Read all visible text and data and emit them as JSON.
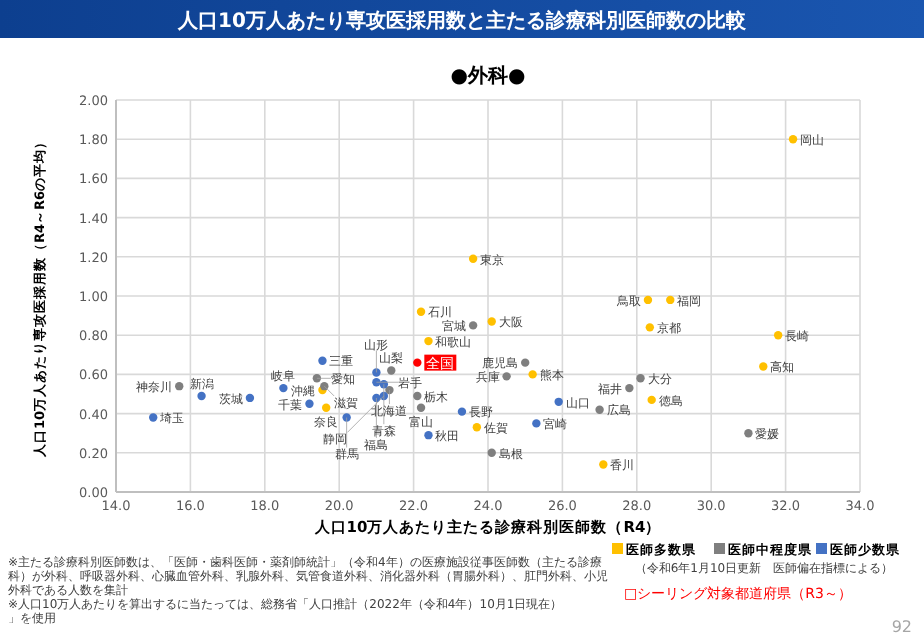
{
  "chart_data": {
    "type": "scatter",
    "title": "人口10万人あたり専攻医採用数と主たる診療科別医師数の比較",
    "subtitle": "●外科●",
    "xlabel": "人口10万人あたり主たる診療科別医師数（R4）",
    "ylabel": "人口10万人あたり専攻医採用数（R4～R6の平均）",
    "xlim": [
      14,
      34
    ],
    "xticks": [
      {
        "value": 14,
        "label": "14.0"
      },
      {
        "value": 16,
        "label": "16.0"
      },
      {
        "value": 18,
        "label": "18.0"
      },
      {
        "value": 20,
        "label": "20.0"
      },
      {
        "value": 22,
        "label": "22.0"
      },
      {
        "value": 24,
        "label": "24.0"
      },
      {
        "value": 26,
        "label": "26.0"
      },
      {
        "value": 28,
        "label": "28.0"
      },
      {
        "value": 30,
        "label": "30.0"
      },
      {
        "value": 32,
        "label": "32.0"
      },
      {
        "value": 34,
        "label": "34.0"
      }
    ],
    "ylim": [
      0,
      2
    ],
    "yticks": [
      {
        "value": 0,
        "label": "0.00"
      },
      {
        "value": 0.2,
        "label": "0.20"
      },
      {
        "value": 0.4,
        "label": "0.40"
      },
      {
        "value": 0.6,
        "label": "0.60"
      },
      {
        "value": 0.8,
        "label": "0.80"
      },
      {
        "value": 1,
        "label": "1.00"
      },
      {
        "value": 1.2,
        "label": "1.20"
      },
      {
        "value": 1.4,
        "label": "1.40"
      },
      {
        "value": 1.6,
        "label": "1.60"
      },
      {
        "value": 1.8,
        "label": "1.80"
      },
      {
        "value": 2,
        "label": "2.00"
      }
    ],
    "grid": true,
    "legend": "bottom right",
    "marker": "circle",
    "series": [
      {
        "name": "医師多数県",
        "color": "#ffc000",
        "x": [
          32.2,
          23.6,
          28.3,
          28.9,
          28.35,
          31.8,
          31.4,
          22.2,
          24.1,
          22.4,
          25.2,
          28.4,
          23.7,
          27.1,
          19.55,
          19.65
        ],
        "values": [
          1.8,
          1.19,
          0.98,
          0.98,
          0.84,
          0.8,
          0.64,
          0.92,
          0.87,
          0.77,
          0.6,
          0.47,
          0.33,
          0.14,
          0.52,
          0.43
        ]
      },
      {
        "name": "医師中程度県",
        "color": "#7f7f7f",
        "x": [
          23.6,
          25.0,
          24.5,
          27.8,
          28.1,
          27.0,
          31.0,
          24.1,
          21.4,
          19.4,
          19.6,
          21.35,
          22.1,
          22.2,
          15.7
        ],
        "values": [
          0.85,
          0.66,
          0.59,
          0.53,
          0.58,
          0.42,
          0.3,
          0.2,
          0.62,
          0.58,
          0.54,
          0.52,
          0.49,
          0.43,
          0.54
        ]
      },
      {
        "name": "医師少数県",
        "color": "#4472c4",
        "x": [
          19.55,
          21.0,
          21.0,
          21.2,
          21.0,
          21.2,
          22.4,
          20.2,
          19.2,
          18.5,
          17.6,
          16.3,
          15.0,
          25.9,
          23.3,
          25.3
        ],
        "values": [
          0.67,
          0.61,
          0.56,
          0.55,
          0.48,
          0.49,
          0.29,
          0.38,
          0.45,
          0.53,
          0.48,
          0.49,
          0.38,
          0.46,
          0.41,
          0.35
        ]
      },
      {
        "color": "#ff0000",
        "x": [
          22.1
        ],
        "values": [
          0.66
        ]
      }
    ],
    "annotations": [
      {
        "text": "岡山",
        "x": 32.2,
        "y": 1.8
      },
      {
        "text": "東京",
        "x": 23.6,
        "y": 1.19
      },
      {
        "text": "鳥取",
        "x": 28.3,
        "y": 0.98
      },
      {
        "text": "福岡",
        "x": 28.9,
        "y": 0.98
      },
      {
        "text": "京都",
        "x": 28.35,
        "y": 0.84
      },
      {
        "text": "長崎",
        "x": 31.8,
        "y": 0.8
      },
      {
        "text": "高知",
        "x": 31.4,
        "y": 0.64
      },
      {
        "text": "石川",
        "x": 22.2,
        "y": 0.92
      },
      {
        "text": "大阪",
        "x": 24.1,
        "y": 0.87
      },
      {
        "text": "和歌山",
        "x": 22.4,
        "y": 0.77
      },
      {
        "text": "熊本",
        "x": 25.2,
        "y": 0.6
      },
      {
        "text": "徳島",
        "x": 28.4,
        "y": 0.47
      },
      {
        "text": "佐賀",
        "x": 23.7,
        "y": 0.33
      },
      {
        "text": "香川",
        "x": 27.1,
        "y": 0.14
      },
      {
        "text": "沖縄",
        "x": 19.55,
        "y": 0.52
      },
      {
        "text": "奈良",
        "x": 19.65,
        "y": 0.43
      },
      {
        "text": "宮城",
        "x": 23.6,
        "y": 0.85
      },
      {
        "text": "鹿児島",
        "x": 25.0,
        "y": 0.66
      },
      {
        "text": "兵庫",
        "x": 24.5,
        "y": 0.59
      },
      {
        "text": "福井",
        "x": 27.8,
        "y": 0.53
      },
      {
        "text": "大分",
        "x": 28.1,
        "y": 0.58
      },
      {
        "text": "広島",
        "x": 27.0,
        "y": 0.42
      },
      {
        "text": "愛媛",
        "x": 31.0,
        "y": 0.3
      },
      {
        "text": "島根",
        "x": 24.1,
        "y": 0.2
      },
      {
        "text": "山梨",
        "x": 21.4,
        "y": 0.62
      },
      {
        "text": "愛知",
        "x": 19.4,
        "y": 0.58
      },
      {
        "text": "滋賀",
        "x": 19.6,
        "y": 0.54
      },
      {
        "text": "北海道",
        "x": 21.35,
        "y": 0.52
      },
      {
        "text": "栃木",
        "x": 22.1,
        "y": 0.49
      },
      {
        "text": "富山",
        "x": 22.2,
        "y": 0.43
      },
      {
        "text": "神奈川",
        "x": 15.7,
        "y": 0.54
      },
      {
        "text": "三重",
        "x": 19.55,
        "y": 0.67
      },
      {
        "text": "山形",
        "x": 21.0,
        "y": 0.61
      },
      {
        "text": "岩手",
        "x": 21.0,
        "y": 0.56
      },
      {
        "text": "青森",
        "x": 21.2,
        "y": 0.55
      },
      {
        "text": "福島",
        "x": 21.0,
        "y": 0.48
      },
      {
        "text": "静岡",
        "x": 21.2,
        "y": 0.49
      },
      {
        "text": "秋田",
        "x": 22.4,
        "y": 0.29
      },
      {
        "text": "群馬",
        "x": 20.2,
        "y": 0.38
      },
      {
        "text": "千葉",
        "x": 19.2,
        "y": 0.45
      },
      {
        "text": "岐阜",
        "x": 18.5,
        "y": 0.53
      },
      {
        "text": "茨城",
        "x": 17.6,
        "y": 0.48
      },
      {
        "text": "新潟",
        "x": 16.3,
        "y": 0.49
      },
      {
        "text": "埼玉",
        "x": 15.0,
        "y": 0.38
      },
      {
        "text": "山口",
        "x": 25.9,
        "y": 0.46
      },
      {
        "text": "長野",
        "x": 23.3,
        "y": 0.41
      },
      {
        "text": "宮崎",
        "x": 25.3,
        "y": 0.35
      },
      {
        "text": "全国",
        "x": 22.1,
        "y": 0.66
      },
      "※主たる診療科別医師数は、「医師・歯科医師・薬剤師統計」（令和4年）の医療施設従事医師数（主たる診療科）が外科、呼吸器外科、心臓血管外科、乳腺外科、気管食道外科、消化器外科（胃腸外科）、肛門外科、小児外科である人数を集計",
      "※人口10万人あたりを算出するに当たっては、総務省「人口推計（2022年（令和4年）10月1日現在）」を使用",
      "（令和6年1月10日更新　医師偏在指標による）",
      "□シーリング対象都道府県（R3～）",
      "92"
    ]
  }
}
